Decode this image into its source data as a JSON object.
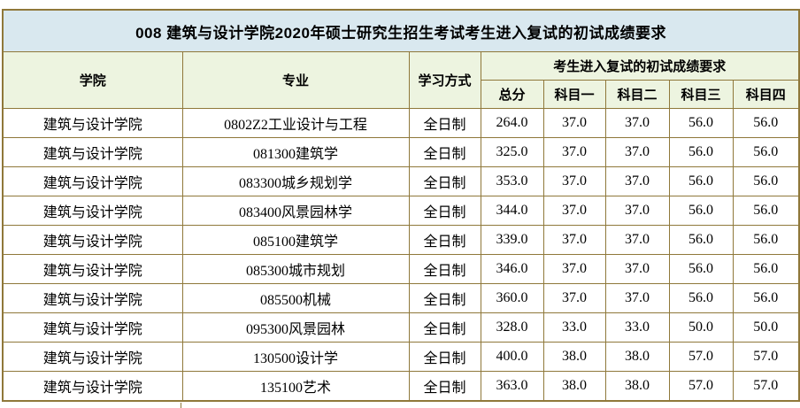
{
  "page": {
    "title": "008 建筑与设计学院2020年硕士研究生招生考试考生进入复试的初试成绩要求"
  },
  "table": {
    "headers": {
      "college": "学院",
      "major": "专业",
      "mode": "学习方式",
      "group": "考生进入复试的初试成绩要求",
      "scores": [
        "总分",
        "科目一",
        "科目二",
        "科目三",
        "科目四"
      ]
    },
    "rows": [
      {
        "college": "建筑与设计学院",
        "major": "0802Z2工业设计与工程",
        "mode": "全日制",
        "scores": [
          "264.0",
          "37.0",
          "37.0",
          "56.0",
          "56.0"
        ]
      },
      {
        "college": "建筑与设计学院",
        "major": "081300建筑学",
        "mode": "全日制",
        "scores": [
          "325.0",
          "37.0",
          "37.0",
          "56.0",
          "56.0"
        ]
      },
      {
        "college": "建筑与设计学院",
        "major": "083300城乡规划学",
        "mode": "全日制",
        "scores": [
          "353.0",
          "37.0",
          "37.0",
          "56.0",
          "56.0"
        ]
      },
      {
        "college": "建筑与设计学院",
        "major": "083400风景园林学",
        "mode": "全日制",
        "scores": [
          "344.0",
          "37.0",
          "37.0",
          "56.0",
          "56.0"
        ]
      },
      {
        "college": "建筑与设计学院",
        "major": "085100建筑学",
        "mode": "全日制",
        "scores": [
          "339.0",
          "37.0",
          "37.0",
          "56.0",
          "56.0"
        ]
      },
      {
        "college": "建筑与设计学院",
        "major": "085300城市规划",
        "mode": "全日制",
        "scores": [
          "346.0",
          "37.0",
          "37.0",
          "56.0",
          "56.0"
        ]
      },
      {
        "college": "建筑与设计学院",
        "major": "085500机械",
        "mode": "全日制",
        "scores": [
          "360.0",
          "37.0",
          "37.0",
          "56.0",
          "56.0"
        ]
      },
      {
        "college": "建筑与设计学院",
        "major": "095300风景园林",
        "mode": "全日制",
        "scores": [
          "328.0",
          "33.0",
          "33.0",
          "50.0",
          "50.0"
        ]
      },
      {
        "college": "建筑与设计学院",
        "major": "130500设计学",
        "mode": "全日制",
        "scores": [
          "400.0",
          "38.0",
          "38.0",
          "57.0",
          "57.0"
        ]
      },
      {
        "college": "建筑与设计学院",
        "major": "135100艺术",
        "mode": "全日制",
        "scores": [
          "363.0",
          "38.0",
          "38.0",
          "57.0",
          "57.0"
        ]
      }
    ]
  },
  "colors": {
    "title_bg": "#d9e8ef",
    "header_bg": "#edf4e0",
    "border": "#8f783a",
    "row_bg": "#ffffff",
    "text": "#000000"
  },
  "chart_data": {
    "type": "table",
    "title": "008 建筑与设计学院2020年硕士研究生招生考试考生进入复试的初试成绩要求",
    "columns": [
      "学院",
      "专业",
      "学习方式",
      "总分",
      "科目一",
      "科目二",
      "科目三",
      "科目四"
    ],
    "rows": [
      [
        "建筑与设计学院",
        "0802Z2工业设计与工程",
        "全日制",
        264.0,
        37.0,
        37.0,
        56.0,
        56.0
      ],
      [
        "建筑与设计学院",
        "081300建筑学",
        "全日制",
        325.0,
        37.0,
        37.0,
        56.0,
        56.0
      ],
      [
        "建筑与设计学院",
        "083300城乡规划学",
        "全日制",
        353.0,
        37.0,
        37.0,
        56.0,
        56.0
      ],
      [
        "建筑与设计学院",
        "083400风景园林学",
        "全日制",
        344.0,
        37.0,
        37.0,
        56.0,
        56.0
      ],
      [
        "建筑与设计学院",
        "085100建筑学",
        "全日制",
        339.0,
        37.0,
        37.0,
        56.0,
        56.0
      ],
      [
        "建筑与设计学院",
        "085300城市规划",
        "全日制",
        346.0,
        37.0,
        37.0,
        56.0,
        56.0
      ],
      [
        "建筑与设计学院",
        "085500机械",
        "全日制",
        360.0,
        37.0,
        37.0,
        56.0,
        56.0
      ],
      [
        "建筑与设计学院",
        "095300风景园林",
        "全日制",
        328.0,
        33.0,
        33.0,
        50.0,
        50.0
      ],
      [
        "建筑与设计学院",
        "130500设计学",
        "全日制",
        400.0,
        38.0,
        38.0,
        57.0,
        57.0
      ],
      [
        "建筑与设计学院",
        "135100艺术",
        "全日制",
        363.0,
        38.0,
        38.0,
        57.0,
        57.0
      ]
    ]
  }
}
